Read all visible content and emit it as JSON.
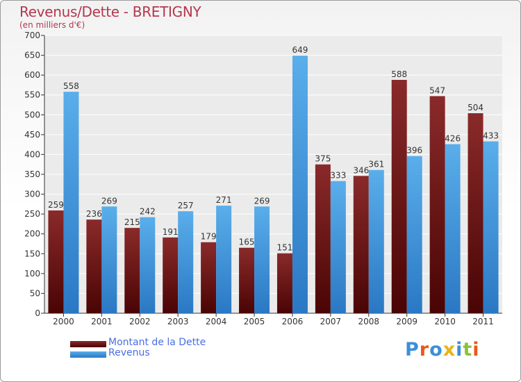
{
  "chart_data": {
    "type": "bar",
    "title": "Revenus/Dette - BRETIGNY",
    "subtitle": "(en milliers d'€)",
    "categories": [
      "2000",
      "2001",
      "2002",
      "2003",
      "2004",
      "2005",
      "2006",
      "2007",
      "2008",
      "2009",
      "2010",
      "2011"
    ],
    "series": [
      {
        "name": "Montant de la Dette",
        "color": "#7b1a1a",
        "values": [
          259,
          236,
          215,
          191,
          179,
          165,
          151,
          375,
          346,
          588,
          547,
          504
        ]
      },
      {
        "name": "Revenus",
        "color": "#4a9fe0",
        "values": [
          558,
          269,
          242,
          257,
          271,
          269,
          649,
          333,
          361,
          396,
          426,
          433
        ]
      }
    ],
    "ylim": [
      0,
      700
    ],
    "yticks": [
      0,
      50,
      100,
      150,
      200,
      250,
      300,
      350,
      400,
      450,
      500,
      550,
      600,
      650,
      700
    ],
    "grid": true,
    "legend": "bottom-left"
  },
  "logo": {
    "text": "Proxiti",
    "colors": [
      "#3c8fd8",
      "#e85a1a",
      "#3c8fd8",
      "#e8b21a",
      "#3c8fd8",
      "#8bc23a",
      "#e85a1a"
    ]
  }
}
